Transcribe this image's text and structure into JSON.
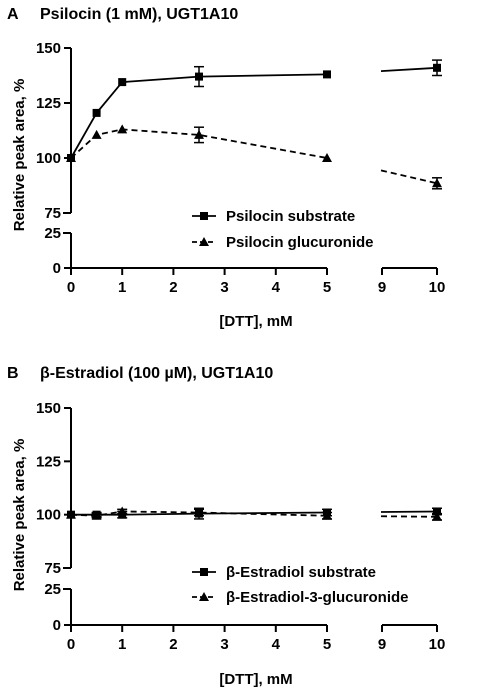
{
  "chart_data": [
    {
      "type": "line",
      "panel": "A",
      "title": "Psilocin (1 mM), UGT1A10",
      "xlabel": "[DTT], mM",
      "ylabel": "Relative peak area, %",
      "x_ticks": [
        "0",
        "1",
        "2",
        "3",
        "4",
        "5",
        "9",
        "10"
      ],
      "y_ticks": [
        "0",
        "25",
        "75",
        "100",
        "125",
        "150"
      ],
      "x_segments": [
        [
          0,
          5
        ],
        [
          9,
          10
        ]
      ],
      "y_segments": [
        [
          0,
          25
        ],
        [
          75,
          150
        ]
      ],
      "legend_position": "bottom-right",
      "series": [
        {
          "name": "Psilocin substrate",
          "marker": "square",
          "line": "solid",
          "x": [
            0,
            0.5,
            1,
            2.5,
            5,
            10
          ],
          "y": [
            100,
            120.5,
            134.5,
            137,
            138,
            141
          ],
          "err": [
            0,
            0,
            0,
            4.5,
            0,
            3.5
          ]
        },
        {
          "name": "Psilocin glucuronide",
          "marker": "triangle",
          "line": "dashed",
          "x": [
            0,
            0.5,
            1,
            2.5,
            5,
            10
          ],
          "y": [
            100,
            110.5,
            113,
            110.5,
            100,
            88.5
          ],
          "err": [
            0,
            0,
            0,
            3.5,
            0,
            2.5
          ]
        }
      ]
    },
    {
      "type": "line",
      "panel": "B",
      "title": "β-Estradiol (100 µM), UGT1A10",
      "xlabel": "[DTT], mM",
      "ylabel": "Relative peak area, %",
      "x_ticks": [
        "0",
        "1",
        "2",
        "3",
        "4",
        "5",
        "9",
        "10"
      ],
      "y_ticks": [
        "0",
        "25",
        "75",
        "100",
        "125",
        "150"
      ],
      "x_segments": [
        [
          0,
          5
        ],
        [
          9,
          10
        ]
      ],
      "y_segments": [
        [
          0,
          25
        ],
        [
          75,
          150
        ]
      ],
      "legend_position": "bottom-right",
      "series": [
        {
          "name": "β-Estradiol substrate",
          "marker": "square",
          "line": "solid",
          "x": [
            0,
            0.5,
            1,
            2.5,
            5,
            10
          ],
          "y": [
            100,
            100,
            100,
            100.5,
            101,
            101.5
          ],
          "err": [
            0,
            1,
            1.5,
            2.5,
            1.5,
            1.5
          ]
        },
        {
          "name": "β-Estradiol-3-glucuronide",
          "marker": "triangle",
          "line": "dashed",
          "x": [
            0,
            0.5,
            1,
            2.5,
            5,
            10
          ],
          "y": [
            100,
            99.5,
            101.5,
            101,
            99.5,
            99
          ],
          "err": [
            0,
            1,
            1,
            1.5,
            1.5,
            1.5
          ]
        }
      ]
    }
  ]
}
